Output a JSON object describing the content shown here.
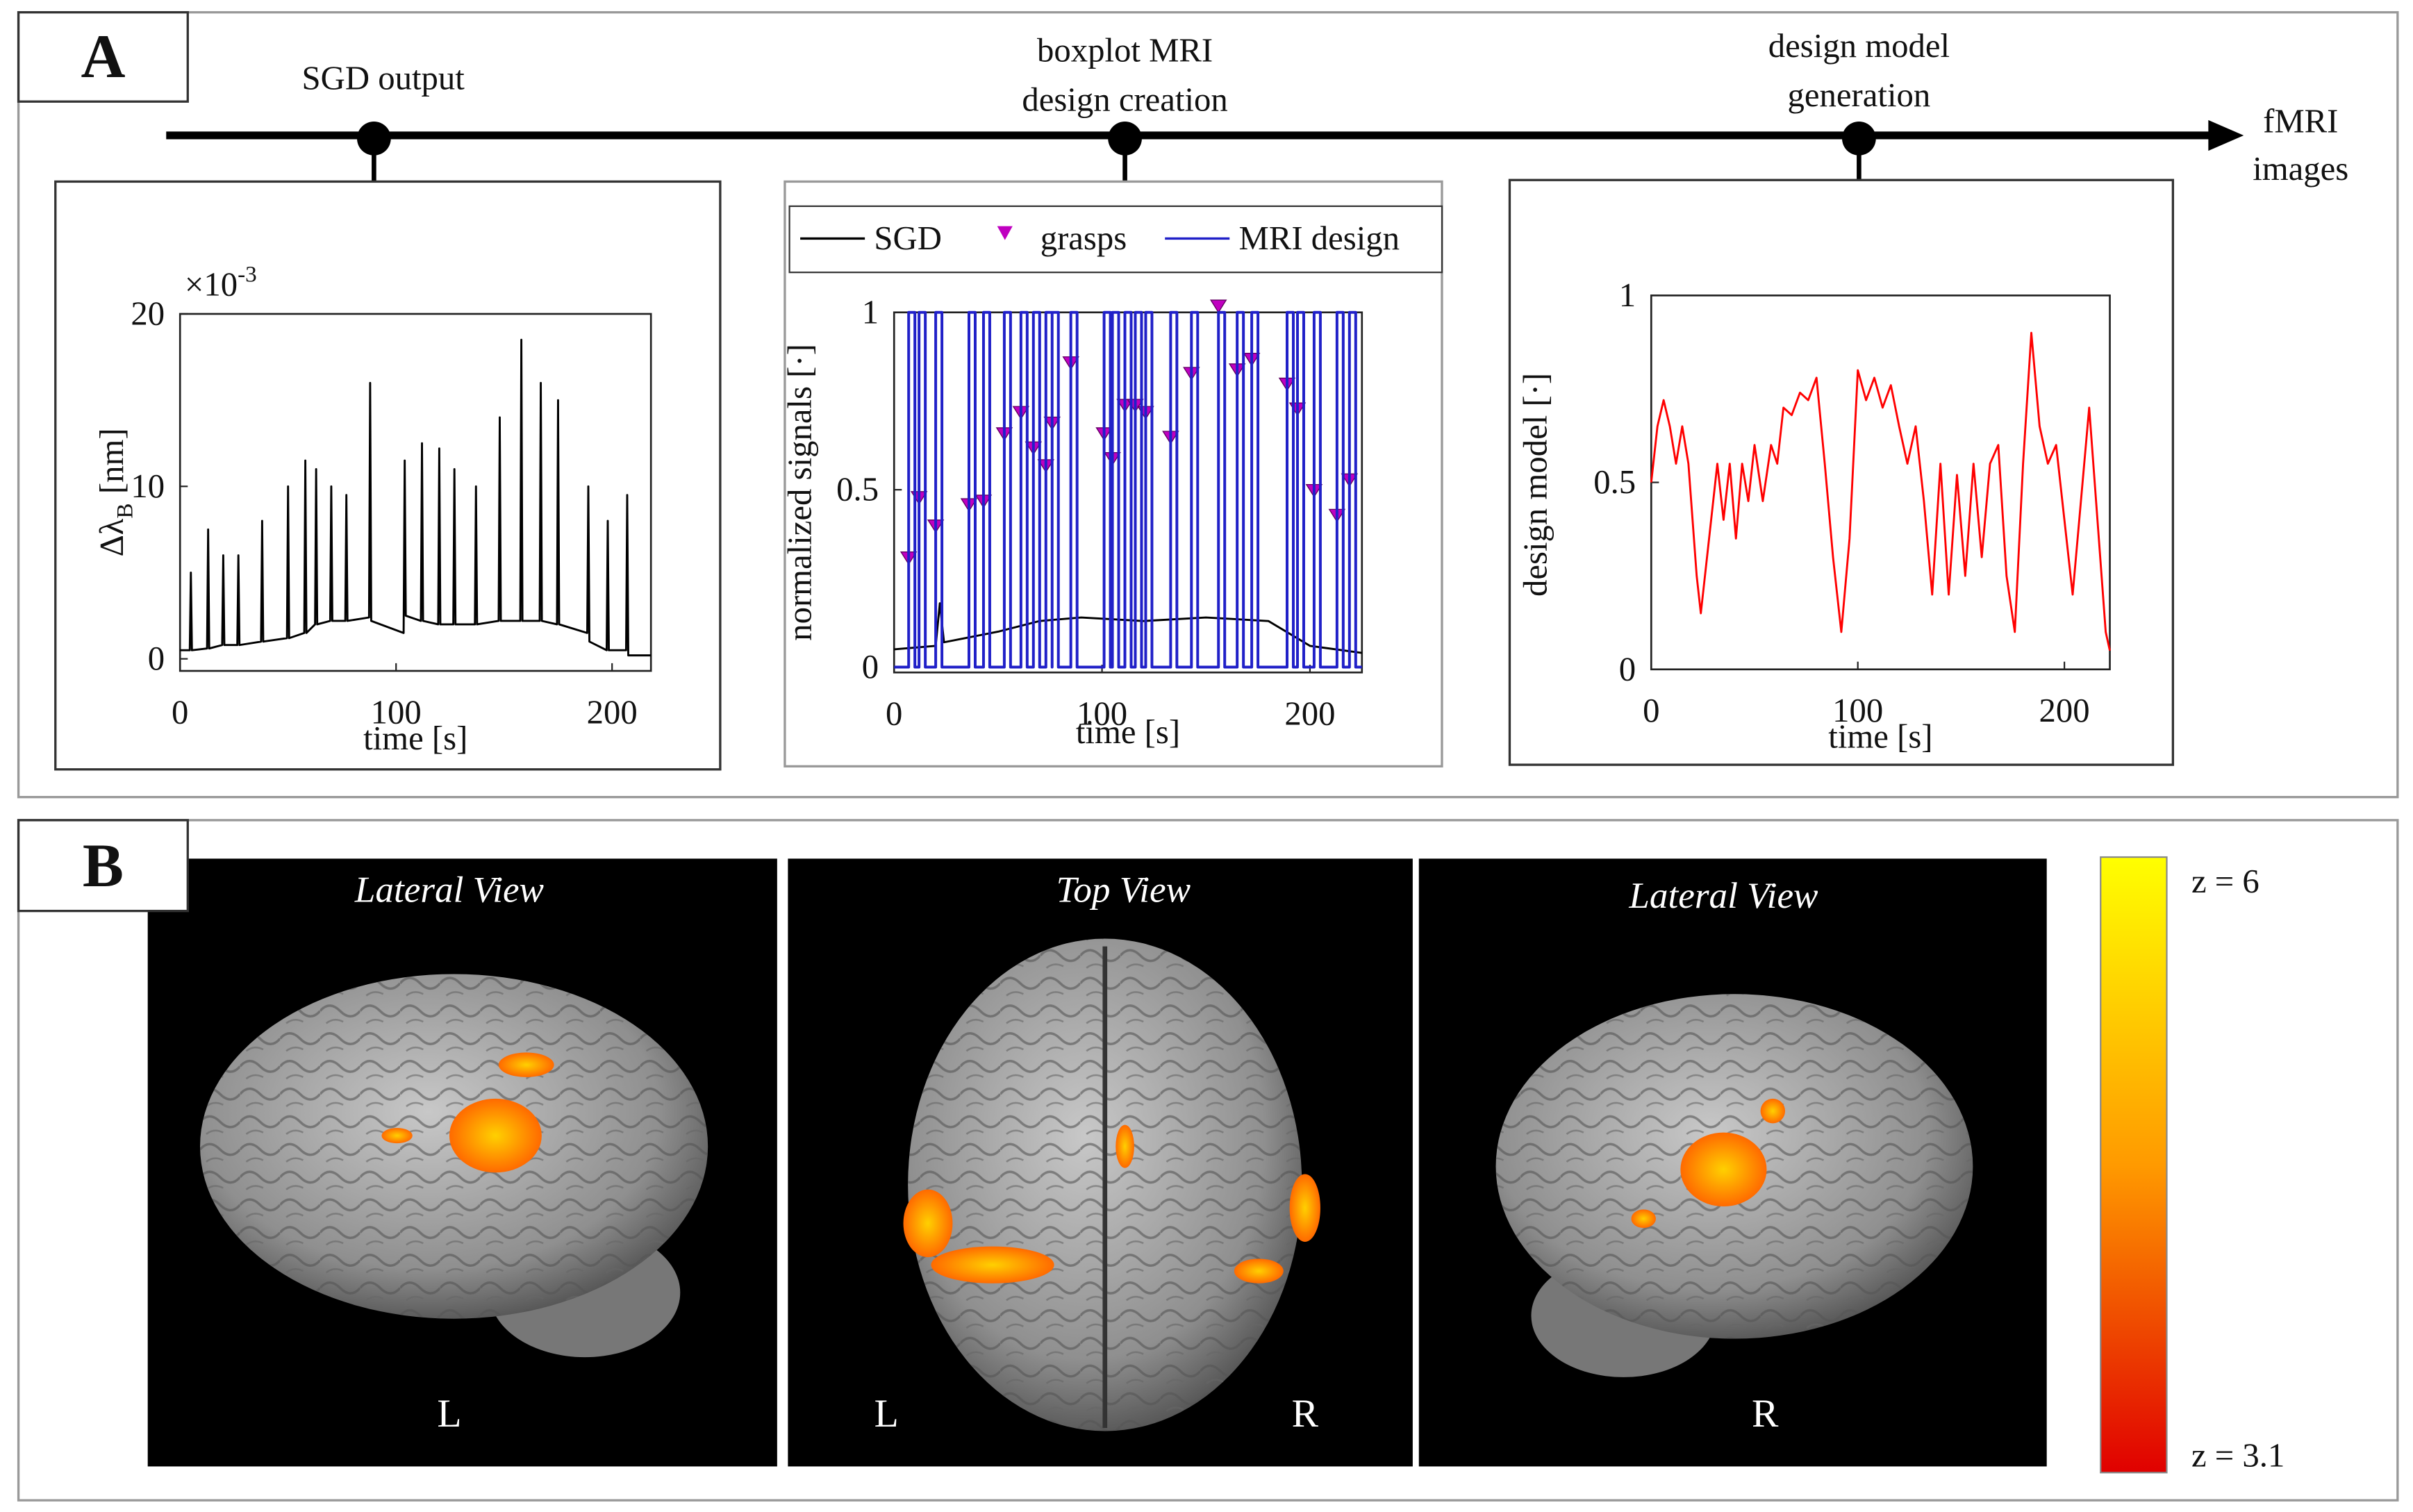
{
  "panel_a": {
    "label": "A",
    "timeline": {
      "steps": [
        {
          "lines": [
            "SGD output"
          ]
        },
        {
          "lines": [
            "boxplot MRI",
            "design creation"
          ]
        },
        {
          "lines": [
            "design model",
            "generation"
          ]
        }
      ],
      "end": [
        "fMRI",
        "images"
      ]
    }
  },
  "chart_data": [
    {
      "type": "line",
      "ylabel": "Δλ",
      "ylabel_sub": "B",
      "ylabel_unit": "[nm]",
      "y_multiplier": "×10",
      "y_multiplier_exp": "-3",
      "xlabel": "time [s]",
      "color": "#000000",
      "x": [
        0,
        4.5,
        5,
        5.5,
        12.5,
        13,
        13.5,
        19.5,
        20,
        20.5,
        26.5,
        27,
        27.5,
        37.5,
        38,
        38.5,
        49.5,
        50,
        50.5,
        57.5,
        58,
        58.5,
        62.5,
        63,
        63.5,
        69.5,
        70,
        70.5,
        76.5,
        77,
        77.5,
        87.5,
        88,
        88.5,
        103.5,
        104,
        104.5,
        111.5,
        112,
        112.5,
        119.5,
        120,
        120.5,
        126.5,
        127,
        127.5,
        136.5,
        137,
        137.5,
        147.5,
        148,
        148.5,
        157.5,
        158,
        158.5,
        166.5,
        167,
        167.5,
        174.5,
        175,
        175.5,
        188.5,
        189,
        189.5,
        197.5,
        198,
        198.5,
        206.5,
        207,
        207.5,
        218
      ],
      "values": [
        0.5,
        0.5,
        5,
        0.5,
        0.6,
        7.5,
        0.6,
        0.8,
        6,
        0.8,
        0.8,
        6,
        0.8,
        1,
        8,
        1,
        1.2,
        10,
        1.2,
        1.5,
        11.5,
        1.5,
        2,
        11,
        2,
        2.2,
        10,
        2.2,
        2.2,
        9.5,
        2.2,
        2.4,
        16,
        2.2,
        1.5,
        11.5,
        2.5,
        2.2,
        12.5,
        2.2,
        2,
        12.2,
        2,
        2,
        11,
        2,
        2,
        10,
        2,
        2.2,
        14,
        2.2,
        2.2,
        18.5,
        2.2,
        2.2,
        16,
        2.2,
        2,
        15,
        2,
        1.5,
        10,
        1,
        0.5,
        8,
        0.5,
        0.5,
        9.5,
        0.2,
        0.2
      ],
      "xlim": [
        0,
        218
      ],
      "xticks": [
        0,
        100,
        200
      ],
      "ylim": [
        -0.7,
        20
      ],
      "yticks": [
        0,
        10,
        20
      ]
    },
    {
      "type": "line",
      "ylabel": "normalized signals [·]",
      "xlabel": "time [s]",
      "xlim": [
        0,
        225
      ],
      "xticks": [
        0,
        100,
        200
      ],
      "ylim": [
        -0.015,
        1
      ],
      "yticks": [
        0,
        0.5,
        1
      ],
      "series": [
        {
          "name": "SGD",
          "color": "#000000",
          "x": [
            0,
            20,
            22,
            24,
            50,
            70,
            90,
            120,
            150,
            180,
            200,
            225
          ],
          "values": [
            0.05,
            0.06,
            0.18,
            0.07,
            0.1,
            0.13,
            0.14,
            0.13,
            0.14,
            0.13,
            0.06,
            0.04
          ]
        },
        {
          "name": "grasps",
          "color": "#c000c0",
          "marker": "triangle-down",
          "x": [
            7,
            12,
            20,
            36,
            43,
            53,
            61,
            67,
            73,
            76,
            85,
            101,
            105,
            111,
            116,
            121,
            133,
            143,
            156,
            165,
            172,
            189,
            194,
            202,
            213,
            219
          ],
          "values": [
            0.29,
            0.46,
            0.38,
            0.44,
            0.45,
            0.64,
            0.7,
            0.6,
            0.55,
            0.67,
            0.84,
            0.64,
            0.57,
            0.72,
            0.72,
            0.7,
            0.63,
            0.81,
            1.0,
            0.82,
            0.85,
            0.78,
            0.71,
            0.48,
            0.41,
            0.51
          ]
        },
        {
          "name": "MRI design",
          "color": "#2020c8",
          "x": [
            0,
            7,
            7,
            10,
            10,
            12,
            12,
            15,
            15,
            20,
            20,
            23,
            23,
            36,
            36,
            39,
            39,
            43,
            43,
            46,
            46,
            53,
            53,
            56,
            56,
            61,
            61,
            64,
            64,
            67,
            67,
            70,
            70,
            73,
            73,
            76,
            76,
            76,
            76,
            79,
            79,
            85,
            85,
            88,
            88,
            101,
            101,
            104,
            104,
            105,
            105,
            108,
            108,
            111,
            111,
            114,
            114,
            116,
            116,
            119,
            119,
            121,
            121,
            124,
            124,
            133,
            133,
            136,
            136,
            143,
            143,
            146,
            146,
            156,
            156,
            159,
            159,
            165,
            165,
            168,
            168,
            172,
            172,
            175,
            175,
            189,
            189,
            192,
            192,
            194,
            194,
            197,
            197,
            202,
            202,
            205,
            205,
            213,
            213,
            216,
            216,
            219,
            219,
            222,
            222,
            225
          ],
          "values": [
            0,
            0,
            1,
            1,
            0,
            0,
            1,
            1,
            0,
            0,
            1,
            1,
            0,
            0,
            1,
            1,
            0,
            0,
            1,
            1,
            0,
            0,
            1,
            1,
            0,
            0,
            1,
            1,
            0,
            0,
            1,
            1,
            0,
            0,
            1,
            1,
            0,
            0,
            1,
            1,
            0,
            0,
            1,
            1,
            0,
            0,
            1,
            1,
            0,
            0,
            1,
            1,
            0,
            0,
            1,
            1,
            0,
            0,
            1,
            1,
            0,
            0,
            1,
            1,
            0,
            0,
            1,
            1,
            0,
            0,
            1,
            1,
            0,
            0,
            1,
            1,
            0,
            0,
            1,
            1,
            0,
            0,
            1,
            1,
            0,
            0,
            1,
            1,
            0,
            0,
            1,
            1,
            0,
            0,
            1,
            1,
            0,
            0,
            1,
            1,
            0,
            0,
            1,
            1,
            0,
            0
          ]
        }
      ]
    },
    {
      "type": "line",
      "ylabel": "design model [·]",
      "xlabel": "time [s]",
      "color": "#ff0000",
      "x": [
        0,
        3,
        6,
        9,
        12,
        15,
        18,
        22,
        24,
        28,
        32,
        35,
        38,
        41,
        44,
        47,
        50,
        54,
        58,
        61,
        64,
        68,
        72,
        76,
        80,
        84,
        88,
        92,
        96,
        100,
        104,
        108,
        112,
        116,
        120,
        124,
        128,
        132,
        136,
        140,
        144,
        148,
        152,
        156,
        160,
        164,
        168,
        172,
        176,
        180,
        184,
        188,
        192,
        196,
        200,
        204,
        208,
        212,
        216,
        220,
        222
      ],
      "values": [
        0.5,
        0.65,
        0.72,
        0.65,
        0.55,
        0.65,
        0.55,
        0.25,
        0.15,
        0.35,
        0.55,
        0.4,
        0.55,
        0.35,
        0.55,
        0.45,
        0.6,
        0.45,
        0.6,
        0.55,
        0.7,
        0.68,
        0.74,
        0.72,
        0.78,
        0.55,
        0.3,
        0.1,
        0.35,
        0.8,
        0.72,
        0.78,
        0.7,
        0.76,
        0.65,
        0.55,
        0.65,
        0.45,
        0.2,
        0.55,
        0.2,
        0.52,
        0.25,
        0.55,
        0.3,
        0.55,
        0.6,
        0.25,
        0.1,
        0.55,
        0.9,
        0.65,
        0.55,
        0.6,
        0.4,
        0.2,
        0.45,
        0.7,
        0.4,
        0.1,
        0.05
      ],
      "xlim": [
        0,
        222
      ],
      "xticks": [
        0,
        100,
        200
      ],
      "ylim": [
        0,
        1
      ],
      "yticks": [
        0,
        0.5,
        1
      ]
    }
  ],
  "panel_b": {
    "label": "B",
    "views": [
      {
        "title": "Lateral View",
        "sides": [
          "L"
        ]
      },
      {
        "title": "Top View",
        "sides": [
          "L",
          "R"
        ]
      },
      {
        "title": "Lateral View",
        "sides": [
          "R"
        ]
      }
    ],
    "colorbar": {
      "top_label": "z = 6",
      "bottom_label": "z = 3.1",
      "colors": [
        "#ffff00",
        "#ff9a00",
        "#e00000"
      ]
    }
  }
}
